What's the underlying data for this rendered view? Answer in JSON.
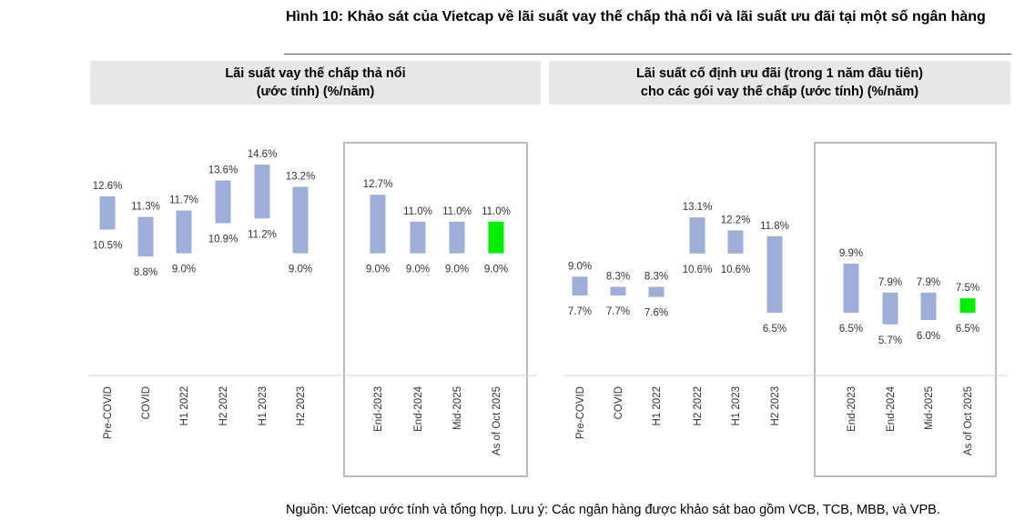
{
  "figure": {
    "title": "Hình 10: Khảo sát của Vietcap về lãi suất vay thế chấp thả nổi và lãi suất ưu đãi tại một số ngân hàng",
    "source": "Nguồn: Vietcap ước tính và tổng hợp. Lưu ý: Các ngân hàng được khảo sát bao gồm VCB, TCB, MBB, và VPB."
  },
  "panels": {
    "left": {
      "title_line1": "Lãi suất vay thế chấp thả nổi",
      "title_line2": "(ước tính) (%/năm)"
    },
    "right": {
      "title_line1": "Lãi suất cố định ưu đãi (trong 1 năm đầu tiên)",
      "title_line2": "cho các gói vay thế chấp (ước tính) (%/năm)"
    }
  },
  "colors": {
    "bar": "#9dafd6",
    "highlight": "#00ee00",
    "box": "#bbbbbb",
    "panel_header": "#e7e7e7"
  },
  "chart_data": [
    {
      "type": "bar",
      "subtype": "floating-range",
      "title": "Lãi suất vay thế chấp thả nổi (ước tính) (%/năm)",
      "categories": [
        "Pre-COVID",
        "COVID",
        "H1 2022",
        "H2 2022",
        "H1 2023",
        "H2 2023",
        "End-2023",
        "End-2024",
        "Mid-2025",
        "As of Oct 2025"
      ],
      "high": [
        12.6,
        11.3,
        11.7,
        13.6,
        14.6,
        13.2,
        12.7,
        11.0,
        11.0,
        11.0
      ],
      "low": [
        10.5,
        8.8,
        9.0,
        10.9,
        11.2,
        9.0,
        9.0,
        9.0,
        9.0,
        9.0
      ],
      "high_labels": [
        "12.6%",
        "11.3%",
        "11.7%",
        "13.6%",
        "14.6%",
        "13.2%",
        "12.7%",
        "11.0%",
        "11.0%",
        "11.0%"
      ],
      "low_labels": [
        "10.5%",
        "8.8%",
        "9.0%",
        "10.9%",
        "11.2%",
        "9.0%",
        "9.0%",
        "9.0%",
        "9.0%",
        "9.0%"
      ],
      "highlight_index": 9,
      "boxed_from_index": 6,
      "ylim": [
        7,
        15
      ]
    },
    {
      "type": "bar",
      "subtype": "floating-range",
      "title": "Lãi suất cố định ưu đãi (trong 1 năm đầu tiên) cho các gói vay thế chấp (ước tính) (%/năm)",
      "categories": [
        "Pre-COVID",
        "COVID",
        "H1 2022",
        "H2 2022",
        "H1 2023",
        "H2 2023",
        "End-2023",
        "End-2024",
        "Mid-2025",
        "As of Oct 2025"
      ],
      "high": [
        9.0,
        8.3,
        8.3,
        13.1,
        12.2,
        11.8,
        9.9,
        7.9,
        7.9,
        7.5
      ],
      "low": [
        7.7,
        7.7,
        7.6,
        10.6,
        10.6,
        6.5,
        6.5,
        5.7,
        6.0,
        6.5
      ],
      "high_labels": [
        "9.0%",
        "8.3%",
        "8.3%",
        "13.1%",
        "12.2%",
        "11.8%",
        "9.9%",
        "7.9%",
        "7.9%",
        "7.5%"
      ],
      "low_labels": [
        "7.7%",
        "7.7%",
        "7.6%",
        "10.6%",
        "10.6%",
        "6.5%",
        "6.5%",
        "5.7%",
        "6.0%",
        "6.5%"
      ],
      "highlight_index": 9,
      "boxed_from_index": 6,
      "ylim": [
        4,
        14
      ]
    }
  ]
}
